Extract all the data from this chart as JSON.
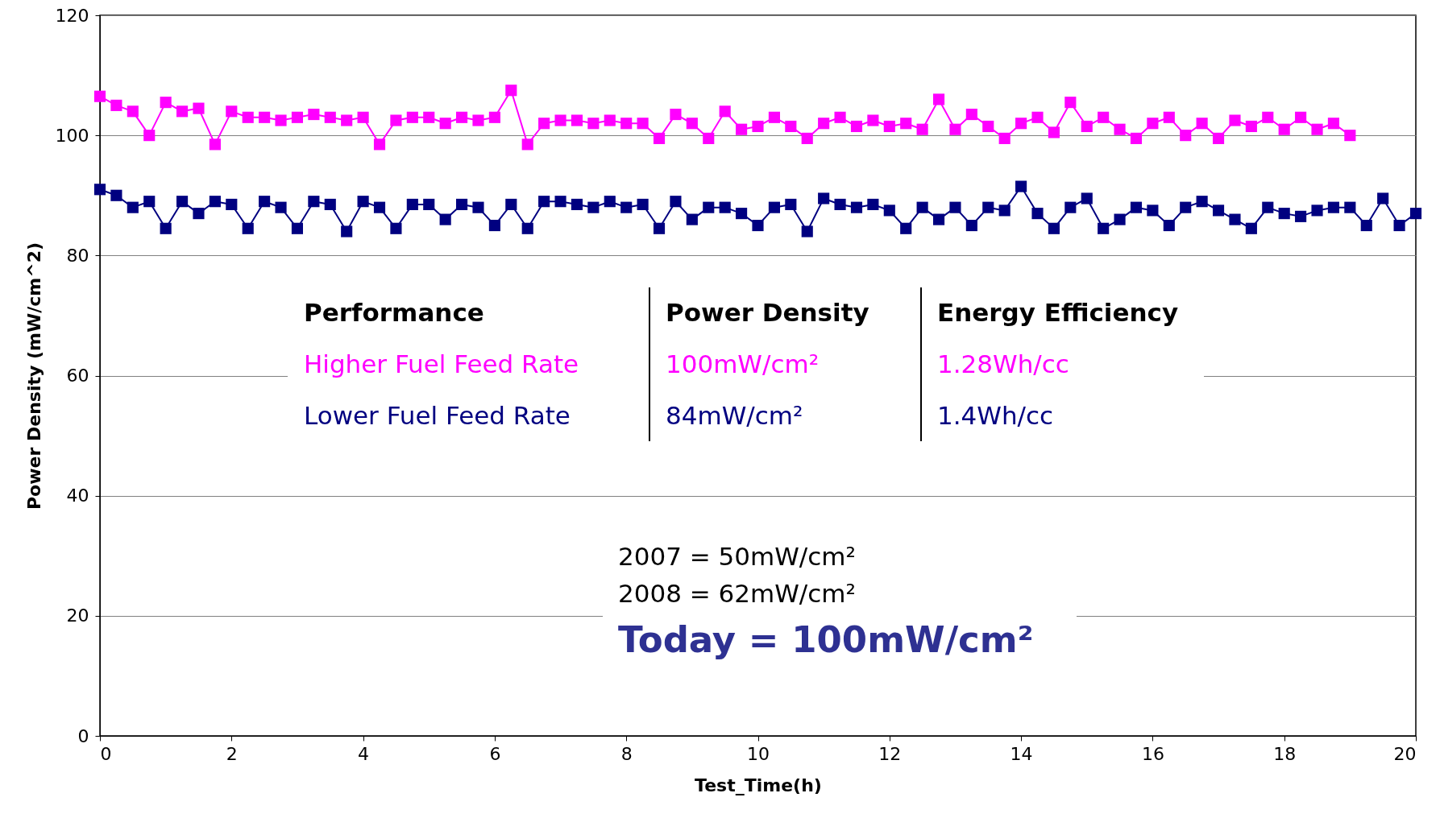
{
  "chart_data": {
    "type": "line",
    "xlabel": "Test_Time(h)",
    "ylabel": "Power Density (mW/cm^2)",
    "xlim": [
      0,
      20
    ],
    "xticks": [
      0,
      2,
      4,
      6,
      8,
      10,
      12,
      14,
      16,
      18,
      20
    ],
    "ylim": [
      0,
      120
    ],
    "yticks": [
      0,
      20,
      40,
      60,
      80,
      100,
      120
    ],
    "grid": "y",
    "marker": "square",
    "series": [
      {
        "name": "Higher Fuel Feed Rate",
        "color": "#ff00ff",
        "x": [
          0,
          0.25,
          0.5,
          0.75,
          1,
          1.25,
          1.5,
          1.75,
          2,
          2.25,
          2.5,
          2.75,
          3,
          3.25,
          3.5,
          3.75,
          4,
          4.25,
          4.5,
          4.75,
          5,
          5.25,
          5.5,
          5.75,
          6,
          6.25,
          6.5,
          6.75,
          7,
          7.25,
          7.5,
          7.75,
          8,
          8.25,
          8.5,
          8.75,
          9,
          9.25,
          9.5,
          9.75,
          10,
          10.25,
          10.5,
          10.75,
          11,
          11.25,
          11.5,
          11.75,
          12,
          12.25,
          12.5,
          12.75,
          13,
          13.25,
          13.5,
          13.75,
          14,
          14.25,
          14.5,
          14.75,
          15,
          15.25,
          15.5,
          15.75,
          16,
          16.25,
          16.5,
          16.75,
          17,
          17.25,
          17.5,
          17.75,
          18,
          18.25,
          18.5,
          18.75,
          19
        ],
        "values": [
          106.5,
          105,
          104,
          100,
          105.5,
          104,
          104.5,
          98.5,
          104,
          103,
          103,
          102.5,
          103,
          103.5,
          103,
          102.5,
          103,
          98.5,
          102.5,
          103,
          103,
          102,
          103,
          102.5,
          103,
          107.5,
          98.5,
          102,
          102.5,
          102.5,
          102,
          102.5,
          102,
          102,
          99.5,
          103.5,
          102,
          99.5,
          104,
          101,
          101.5,
          103,
          101.5,
          99.5,
          102,
          103,
          101.5,
          102.5,
          101.5,
          102,
          101,
          106,
          101,
          103.5,
          101.5,
          99.5,
          102,
          103,
          100.5,
          105.5,
          101.5,
          103,
          101,
          99.5,
          102,
          103,
          100,
          102,
          99.5,
          102.5,
          101.5,
          103,
          101,
          103,
          101,
          102,
          100
        ]
      },
      {
        "name": "Lower Fuel Feed Rate",
        "color": "#000080",
        "x": [
          0,
          0.25,
          0.5,
          0.75,
          1,
          1.25,
          1.5,
          1.75,
          2,
          2.25,
          2.5,
          2.75,
          3,
          3.25,
          3.5,
          3.75,
          4,
          4.25,
          4.5,
          4.75,
          5,
          5.25,
          5.5,
          5.75,
          6,
          6.25,
          6.5,
          6.75,
          7,
          7.25,
          7.5,
          7.75,
          8,
          8.25,
          8.5,
          8.75,
          9,
          9.25,
          9.5,
          9.75,
          10,
          10.25,
          10.5,
          10.75,
          11,
          11.25,
          11.5,
          11.75,
          12,
          12.25,
          12.5,
          12.75,
          13,
          13.25,
          13.5,
          13.75,
          14,
          14.25,
          14.5,
          14.75,
          15,
          15.25,
          15.5,
          15.75,
          16,
          16.25,
          16.5,
          16.75,
          17,
          17.25,
          17.5,
          17.75,
          18,
          18.25,
          18.5,
          18.75,
          19,
          19.25,
          19.5,
          19.75,
          20
        ],
        "values": [
          91,
          90,
          88,
          89,
          84.5,
          89,
          87,
          89,
          88.5,
          84.5,
          89,
          88,
          84.5,
          89,
          88.5,
          84,
          89,
          88,
          84.5,
          88.5,
          88.5,
          86,
          88.5,
          88,
          85,
          88.5,
          84.5,
          89,
          89,
          88.5,
          88,
          89,
          88,
          88.5,
          84.5,
          89,
          86,
          88,
          88,
          87,
          85,
          88,
          88.5,
          84,
          89.5,
          88.5,
          88,
          88.5,
          87.5,
          84.5,
          88,
          86,
          88,
          85,
          88,
          87.5,
          91.5,
          87,
          84.5,
          88,
          89.5,
          84.5,
          86,
          88,
          87.5,
          85,
          88,
          89,
          87.5,
          86,
          84.5,
          88,
          87,
          86.5,
          87.5,
          88,
          88,
          85,
          89.5,
          85,
          87
        ]
      }
    ],
    "annotations": [
      "Performance",
      "Power Density",
      "Energy Efficiency",
      "100mW/cm²",
      "1.28Wh/cc",
      "84mW/cm²",
      "1.4Wh/cc",
      "2007 = 50mW/cm²",
      "2008 = 62mW/cm²",
      "Today = 100mW/cm²"
    ]
  }
}
